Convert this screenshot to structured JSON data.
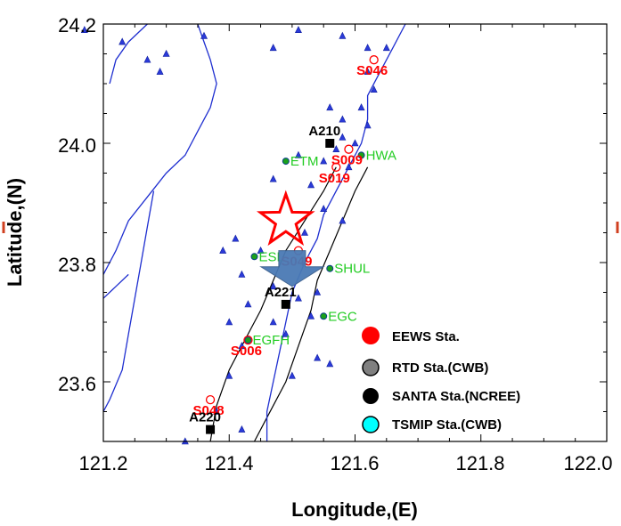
{
  "chart_data": {
    "type": "scatter",
    "title": "",
    "xlabel": "Longitude,(E)",
    "ylabel": "Latitude,(N)",
    "xlim": [
      121.2,
      122.0
    ],
    "ylim": [
      23.5,
      24.2
    ],
    "xticks": [
      "121.2",
      "121.4",
      "121.6",
      "121.8",
      "122.0"
    ],
    "yticks": [
      "23.6",
      "23.8",
      "24.0",
      "24.2"
    ],
    "grid": false,
    "legend": {
      "placement": "bottom-right",
      "entries": [
        {
          "label": "EEWS Sta.",
          "color": "#ff0000"
        },
        {
          "label": "RTD Sta.(CWB)",
          "color": "#808080"
        },
        {
          "label": "SANTA Sta.(NCREE)",
          "color": "#000000"
        },
        {
          "label": "TSMIP Sta.(CWB)",
          "color": "#00ffff"
        }
      ]
    },
    "epicenter": {
      "name": "star",
      "lon": 121.49,
      "lat": 23.87
    },
    "arrow": {
      "from": [
        121.5,
        23.82
      ],
      "to": [
        121.5,
        23.76
      ],
      "color": "#4a7ab5"
    },
    "eews_stations": [
      {
        "name": "S046",
        "lon": 121.63,
        "lat": 24.14
      },
      {
        "name": "S009",
        "lon": 121.59,
        "lat": 23.99
      },
      {
        "name": "S019",
        "lon": 121.57,
        "lat": 23.96
      },
      {
        "name": "S049",
        "lon": 121.51,
        "lat": 23.82
      },
      {
        "name": "S006",
        "lon": 121.43,
        "lat": 23.67
      },
      {
        "name": "S048",
        "lon": 121.37,
        "lat": 23.57
      }
    ],
    "santa_stations": [
      {
        "name": "A210",
        "lon": 121.56,
        "lat": 24.0
      },
      {
        "name": "A221",
        "lon": 121.49,
        "lat": 23.73
      },
      {
        "name": "A220",
        "lon": 121.37,
        "lat": 23.52
      }
    ],
    "tsmip_stations": [
      {
        "name": "ETM",
        "lon": 121.49,
        "lat": 23.97
      },
      {
        "name": "HWA",
        "lon": 121.61,
        "lat": 23.98
      },
      {
        "name": "ESL",
        "lon": 121.44,
        "lat": 23.81
      },
      {
        "name": "SHUL",
        "lon": 121.56,
        "lat": 23.79
      },
      {
        "name": "EGC",
        "lon": 121.55,
        "lat": 23.71
      },
      {
        "name": "EGFH",
        "lon": 121.43,
        "lat": 23.67
      }
    ],
    "rtd_stations": [
      [
        121.17,
        24.19
      ],
      [
        121.23,
        24.17
      ],
      [
        121.3,
        24.15
      ],
      [
        121.27,
        24.14
      ],
      [
        121.29,
        24.12
      ],
      [
        121.36,
        24.18
      ],
      [
        121.47,
        24.16
      ],
      [
        121.51,
        24.19
      ],
      [
        121.58,
        24.18
      ],
      [
        121.62,
        24.16
      ],
      [
        121.65,
        24.16
      ],
      [
        121.62,
        24.12
      ],
      [
        121.63,
        24.09
      ],
      [
        121.61,
        24.06
      ],
      [
        121.62,
        24.03
      ],
      [
        121.56,
        24.06
      ],
      [
        121.58,
        24.04
      ],
      [
        121.6,
        24.0
      ],
      [
        121.57,
        23.99
      ],
      [
        121.59,
        23.96
      ],
      [
        121.55,
        23.97
      ],
      [
        121.51,
        23.98
      ],
      [
        121.58,
        24.01
      ],
      [
        121.53,
        23.93
      ],
      [
        121.47,
        23.94
      ],
      [
        121.55,
        23.89
      ],
      [
        121.58,
        23.87
      ],
      [
        121.52,
        23.85
      ],
      [
        121.45,
        23.82
      ],
      [
        121.41,
        23.84
      ],
      [
        121.39,
        23.82
      ],
      [
        121.42,
        23.78
      ],
      [
        121.47,
        23.76
      ],
      [
        121.51,
        23.74
      ],
      [
        121.54,
        23.75
      ],
      [
        121.53,
        23.71
      ],
      [
        121.49,
        23.68
      ],
      [
        121.47,
        23.7
      ],
      [
        121.43,
        23.73
      ],
      [
        121.4,
        23.7
      ],
      [
        121.42,
        23.66
      ],
      [
        121.54,
        23.64
      ],
      [
        121.56,
        23.63
      ],
      [
        121.5,
        23.61
      ],
      [
        121.4,
        23.61
      ],
      [
        121.38,
        23.55
      ],
      [
        121.42,
        23.52
      ],
      [
        121.33,
        23.5
      ]
    ],
    "coastlines": [
      [
        [
          121.35,
          24.2
        ],
        [
          121.36,
          24.17
        ],
        [
          121.37,
          24.14
        ],
        [
          121.38,
          24.1
        ],
        [
          121.37,
          24.06
        ],
        [
          121.35,
          24.02
        ],
        [
          121.33,
          23.98
        ],
        [
          121.3,
          23.95
        ],
        [
          121.27,
          23.91
        ],
        [
          121.24,
          23.87
        ],
        [
          121.22,
          23.82
        ],
        [
          121.2,
          23.78
        ]
      ],
      [
        [
          121.27,
          24.2
        ],
        [
          121.24,
          24.17
        ],
        [
          121.22,
          24.14
        ],
        [
          121.21,
          24.1
        ]
      ],
      [
        [
          121.28,
          23.92
        ],
        [
          121.27,
          23.86
        ],
        [
          121.26,
          23.8
        ],
        [
          121.25,
          23.74
        ],
        [
          121.24,
          23.68
        ],
        [
          121.23,
          23.62
        ],
        [
          121.21,
          23.57
        ],
        [
          121.2,
          23.55
        ]
      ],
      [
        [
          121.68,
          24.2
        ],
        [
          121.66,
          24.16
        ],
        [
          121.64,
          24.12
        ],
        [
          121.62,
          24.08
        ],
        [
          121.62,
          24.04
        ],
        [
          121.61,
          24.0
        ],
        [
          121.59,
          23.96
        ],
        [
          121.57,
          23.92
        ],
        [
          121.55,
          23.88
        ],
        [
          121.54,
          23.84
        ],
        [
          121.52,
          23.8
        ],
        [
          121.5,
          23.75
        ],
        [
          121.49,
          23.7
        ],
        [
          121.48,
          23.65
        ],
        [
          121.47,
          23.6
        ],
        [
          121.46,
          23.55
        ],
        [
          121.46,
          23.5
        ]
      ],
      [
        [
          121.24,
          23.78
        ],
        [
          121.22,
          23.76
        ],
        [
          121.2,
          23.74
        ]
      ]
    ],
    "faults": [
      [
        [
          121.57,
          23.96
        ],
        [
          121.55,
          23.92
        ],
        [
          121.52,
          23.87
        ],
        [
          121.49,
          23.82
        ],
        [
          121.47,
          23.77
        ],
        [
          121.45,
          23.72
        ],
        [
          121.43,
          23.68
        ],
        [
          121.4,
          23.62
        ],
        [
          121.38,
          23.56
        ],
        [
          121.37,
          23.5
        ]
      ],
      [
        [
          121.62,
          23.96
        ],
        [
          121.6,
          23.92
        ],
        [
          121.58,
          23.87
        ],
        [
          121.56,
          23.82
        ],
        [
          121.54,
          23.77
        ],
        [
          121.53,
          23.72
        ],
        [
          121.51,
          23.66
        ],
        [
          121.49,
          23.6
        ],
        [
          121.46,
          23.54
        ],
        [
          121.44,
          23.5
        ]
      ]
    ]
  }
}
